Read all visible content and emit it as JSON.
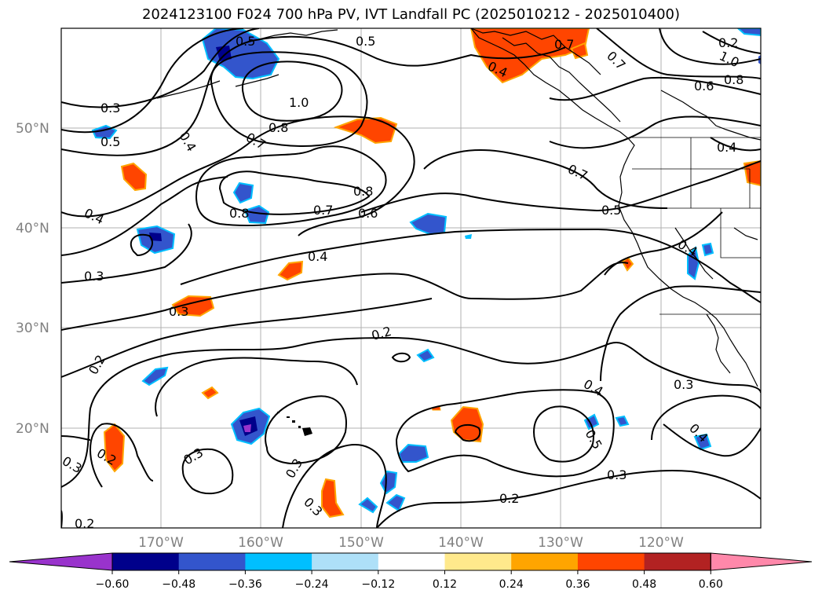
{
  "title": "2024123100 F024 700 hPa PV, IVT Landfall PC (2025010212 - 2025010400)",
  "map": {
    "lat_labels": [
      "50°N",
      "40°N",
      "30°N",
      "20°N"
    ],
    "lon_labels": [
      "170°W",
      "160°W",
      "150°W",
      "140°W",
      "130°W",
      "120°W"
    ],
    "contour_labels": [
      "0.5",
      "0.5",
      "0.7",
      "1.0",
      "0.4",
      "0.7",
      "0.8",
      "0.3",
      "0.5",
      "0.4",
      "0.7",
      "0.8",
      "0.6",
      "0.7",
      "0.8",
      "0.6",
      "0.7",
      "0.5",
      "0.4",
      "0.8",
      "1.0",
      "0.4",
      "0.4",
      "0.4",
      "0.3",
      "0.3",
      "0.2",
      "0.2",
      "0.4",
      "0.5",
      "0.3",
      "0.4",
      "0.3",
      "0.2",
      "0.3",
      "0.3",
      "0.3",
      "0.2",
      "0.3",
      "0.2",
      "0.2",
      "0.4",
      "0.3"
    ]
  },
  "colorbar": {
    "ticks": [
      "−0.60",
      "−0.48",
      "−0.36",
      "−0.24",
      "−0.12",
      "0.12",
      "0.24",
      "0.36",
      "0.48",
      "0.60"
    ],
    "colors": [
      "#9933cc",
      "#00008b",
      "#3355cc",
      "#00bfff",
      "#aee0f8",
      "#ffffff",
      "#ffe98c",
      "#ffa500",
      "#ff4500",
      "#b22222",
      "#ff88aa"
    ]
  }
}
